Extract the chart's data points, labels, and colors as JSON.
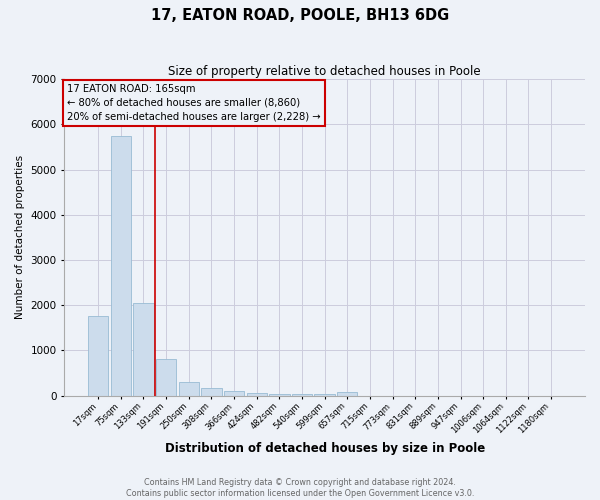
{
  "title": "17, EATON ROAD, POOLE, BH13 6DG",
  "subtitle": "Size of property relative to detached houses in Poole",
  "xlabel": "Distribution of detached houses by size in Poole",
  "ylabel": "Number of detached properties",
  "footnote1": "Contains HM Land Registry data © Crown copyright and database right 2024.",
  "footnote2": "Contains public sector information licensed under the Open Government Licence v3.0.",
  "categories": [
    "17sqm",
    "75sqm",
    "133sqm",
    "191sqm",
    "250sqm",
    "308sqm",
    "366sqm",
    "424sqm",
    "482sqm",
    "540sqm",
    "599sqm",
    "657sqm",
    "715sqm",
    "773sqm",
    "831sqm",
    "889sqm",
    "947sqm",
    "1006sqm",
    "1064sqm",
    "1122sqm",
    "1180sqm"
  ],
  "values": [
    1750,
    5750,
    2050,
    800,
    305,
    175,
    100,
    62,
    45,
    35,
    25,
    70,
    0,
    0,
    0,
    0,
    0,
    0,
    0,
    0,
    0
  ],
  "bar_color": "#ccdcec",
  "bar_edgecolor": "#99bbd4",
  "grid_color": "#ccccdd",
  "bg_color": "#eef2f8",
  "redline_x": 2.5,
  "annotation_line1": "17 EATON ROAD: 165sqm",
  "annotation_line2": "← 80% of detached houses are smaller (8,860)",
  "annotation_line3": "20% of semi-detached houses are larger (2,228) →",
  "annotation_box_color": "#cc0000",
  "ylim": [
    0,
    7000
  ],
  "yticks": [
    0,
    1000,
    2000,
    3000,
    4000,
    5000,
    6000,
    7000
  ]
}
